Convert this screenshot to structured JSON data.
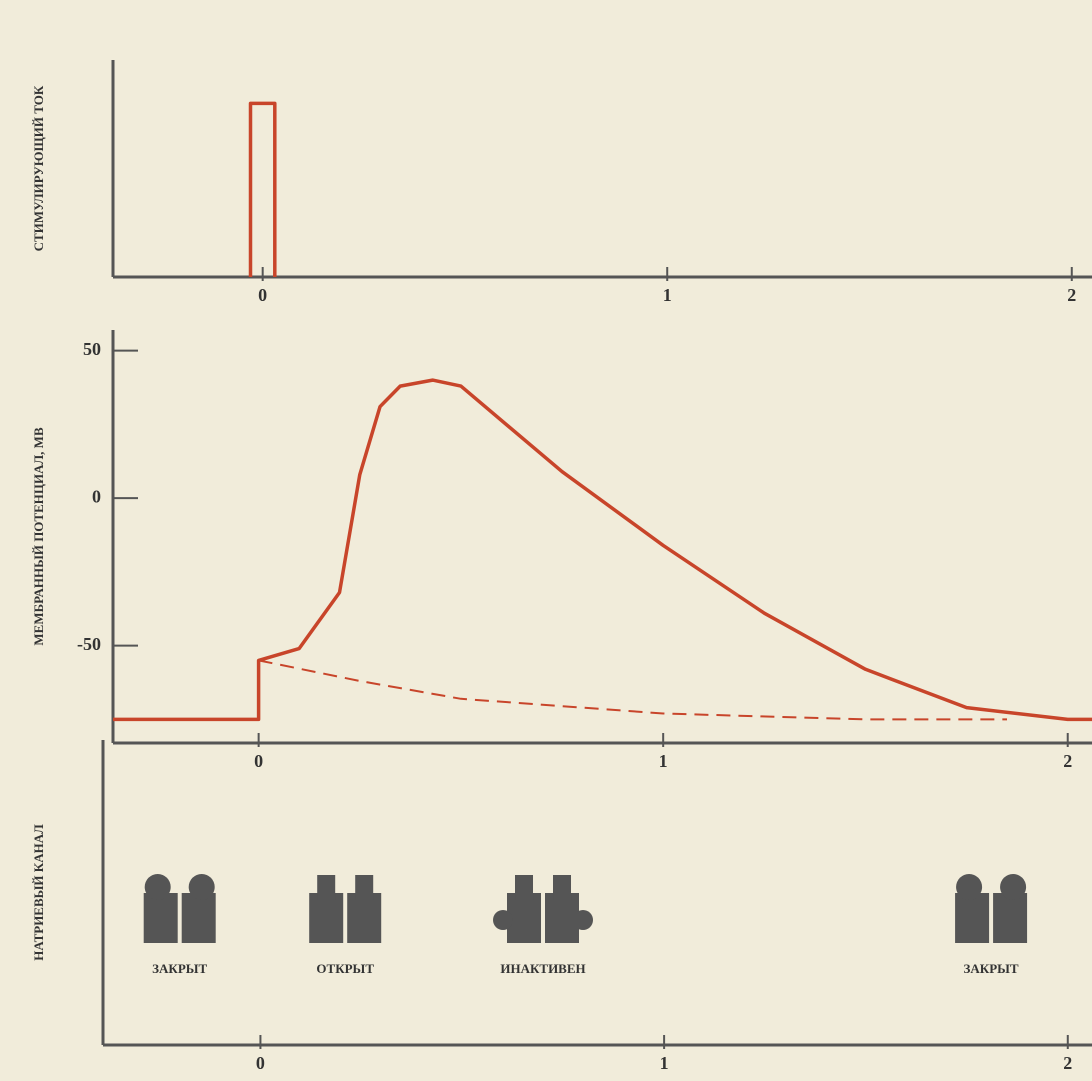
{
  "chart_data": [
    {
      "type": "line",
      "ylabel": "СТИМУЛИРУЮЩИЙ ТОК",
      "xlim": [
        -0.37,
        2.05
      ],
      "xticks": [
        0,
        1,
        2
      ],
      "ylim": [
        0,
        1.25
      ],
      "series": [
        {
          "color": "#c8452a",
          "x": [
            -0.03,
            -0.03,
            0.03,
            0.03
          ],
          "values": [
            0,
            1,
            1,
            0
          ]
        }
      ]
    },
    {
      "type": "line",
      "ylabel": "МЕМБРАННЫЙ ПОТЕНЦИАЛ, МВ",
      "xlim": [
        -0.36,
        2.06
      ],
      "xticks": [
        0,
        1,
        2
      ],
      "ylim": [
        -83,
        57
      ],
      "yticks": [
        50,
        0,
        -50
      ],
      "series": [
        {
          "color": "#c8452a",
          "style": "solid",
          "x": [
            -0.36,
            0,
            0,
            0.1,
            0.2,
            0.25,
            0.3,
            0.35,
            0.43,
            0.5,
            0.75,
            1.0,
            1.25,
            1.5,
            1.75,
            2.0,
            2.06
          ],
          "values": [
            -75,
            -75,
            -55,
            -51,
            -32,
            8,
            31,
            38,
            40,
            38,
            9,
            -16,
            -39,
            -58,
            -71,
            -75,
            -75
          ]
        },
        {
          "color": "#c8452a",
          "style": "dashed",
          "x": [
            0,
            0.25,
            0.5,
            1.0,
            1.5,
            1.85
          ],
          "values": [
            -55,
            -62,
            -68,
            -73,
            -75,
            -75
          ]
        }
      ]
    },
    {
      "type": "states",
      "ylabel": "НАТРИЕВЫЙ КАНАЛ",
      "xlim": [
        -0.39,
        2.06
      ],
      "xticks": [
        0,
        1,
        2
      ],
      "categories": [
        "ЗАКРЫТ",
        "ОТКРЫТ",
        "ИНАКТИВЕН",
        "ЗАКРЫТ"
      ],
      "x": [
        -0.2,
        0.21,
        0.7,
        1.81
      ]
    }
  ]
}
